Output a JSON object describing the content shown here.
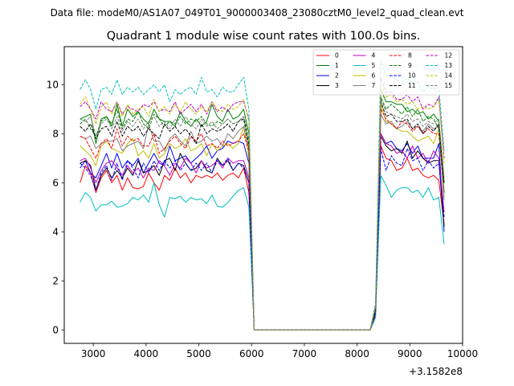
{
  "figure": {
    "suptitle": "Data file: modeM0/AS1A07_049T01_9000003408_23080cztM0_level2_quad_clean.evt"
  },
  "chart_data": {
    "type": "line",
    "title": "Quadrant 1 module wise count rates with 100.0s bins.",
    "xlabel": "",
    "ylabel": "",
    "offset_label": "+3.1582e8",
    "xlim": [
      2450,
      10000
    ],
    "ylim": [
      -0.55,
      11.55
    ],
    "xticks": [
      3000,
      4000,
      5000,
      6000,
      7000,
      8000,
      9000,
      10000
    ],
    "yticks": [
      0,
      2,
      4,
      6,
      8,
      10
    ],
    "grid": false,
    "legend_position": "top-right",
    "legend_columns": 4,
    "x": [
      2750,
      2850,
      2950,
      3050,
      3150,
      3250,
      3350,
      3450,
      3550,
      3650,
      3750,
      3850,
      3950,
      4050,
      4150,
      4250,
      4350,
      4450,
      4550,
      4650,
      4750,
      4850,
      4950,
      5050,
      5150,
      5250,
      5350,
      5450,
      5550,
      5650,
      5750,
      5850,
      5950,
      6050,
      8250,
      8350,
      8450,
      8550,
      8650,
      8750,
      8850,
      8950,
      9050,
      9150,
      9250,
      9350,
      9450,
      9550,
      9650
    ],
    "series": [
      {
        "name": "0",
        "color": "#ff0000",
        "dash": "solid",
        "values": [
          6.0,
          6.7,
          6.4,
          5.6,
          6.2,
          6.5,
          6.0,
          6.3,
          5.7,
          6.2,
          5.8,
          5.75,
          5.85,
          6.4,
          6.0,
          5.7,
          6.3,
          6.1,
          6.6,
          6.2,
          6.4,
          6.0,
          6.3,
          6.2,
          6.3,
          6.2,
          6.4,
          6.1,
          6.3,
          6.4,
          6.2,
          6.6,
          5.6,
          0,
          0,
          0.6,
          7.5,
          7.0,
          6.9,
          6.5,
          6.6,
          7.0,
          6.5,
          6.6,
          6.3,
          6.2,
          6.3,
          6.1,
          4.3
        ]
      },
      {
        "name": "1",
        "color": "#008000",
        "dash": "solid",
        "values": [
          8.6,
          8.7,
          8.8,
          7.6,
          8.6,
          8.7,
          8.3,
          9.2,
          8.3,
          9.0,
          8.7,
          8.9,
          8.6,
          8.4,
          9.0,
          8.6,
          8.5,
          8.5,
          8.3,
          8.9,
          8.5,
          8.3,
          8.6,
          8.3,
          8.5,
          9.2,
          8.7,
          8.5,
          9.0,
          8.6,
          8.7,
          9.0,
          8.0,
          0,
          0,
          0.9,
          9.8,
          9.3,
          9.3,
          9.2,
          9.2,
          8.9,
          9.0,
          8.8,
          8.9,
          8.6,
          8.8,
          8.5,
          6.0
        ]
      },
      {
        "name": "2",
        "color": "#0000ff",
        "dash": "solid",
        "values": [
          6.6,
          6.9,
          6.4,
          6.2,
          6.7,
          7.2,
          6.6,
          7.2,
          6.6,
          6.9,
          6.7,
          7.0,
          6.4,
          6.8,
          7.2,
          6.8,
          6.7,
          7.5,
          6.9,
          7.0,
          7.1,
          6.8,
          7.0,
          7.2,
          7.5,
          7.0,
          7.3,
          7.4,
          7.7,
          7.6,
          7.7,
          7.6,
          6.8,
          0,
          0,
          0.7,
          8.0,
          7.6,
          7.7,
          7.4,
          7.3,
          7.6,
          7.2,
          7.5,
          7.0,
          7.0,
          7.0,
          7.6,
          4.0
        ]
      },
      {
        "name": "3",
        "color": "#000000",
        "dash": "solid",
        "values": [
          6.8,
          6.9,
          6.7,
          5.7,
          6.3,
          6.6,
          6.2,
          6.5,
          6.2,
          6.6,
          6.3,
          6.9,
          6.4,
          6.5,
          6.7,
          6.3,
          6.9,
          7.0,
          6.5,
          7.2,
          6.8,
          6.5,
          6.6,
          6.9,
          6.5,
          6.4,
          7.0,
          6.7,
          6.9,
          6.5,
          6.8,
          6.7,
          6.0,
          0,
          0,
          0.7,
          7.9,
          7.5,
          7.3,
          7.4,
          7.2,
          7.7,
          7.0,
          7.3,
          7.0,
          6.8,
          6.9,
          6.9,
          4.2
        ]
      },
      {
        "name": "4",
        "color": "#bf00bf",
        "dash": "solid",
        "values": [
          6.9,
          7.0,
          6.6,
          6.0,
          6.5,
          6.8,
          6.9,
          6.6,
          6.3,
          6.7,
          6.4,
          6.6,
          6.2,
          6.6,
          6.5,
          6.9,
          6.7,
          6.3,
          6.8,
          6.6,
          7.0,
          6.8,
          6.4,
          6.9,
          6.6,
          6.7,
          6.9,
          6.6,
          7.0,
          6.8,
          6.9,
          6.9,
          6.2,
          0,
          0,
          0.8,
          8.0,
          7.6,
          7.5,
          7.2,
          7.3,
          7.0,
          7.5,
          7.0,
          7.2,
          6.8,
          7.3,
          7.0,
          4.8
        ]
      },
      {
        "name": "5",
        "color": "#00bfbf",
        "dash": "solid",
        "values": [
          5.2,
          5.6,
          5.4,
          4.85,
          5.1,
          5.1,
          5.25,
          5.0,
          5.05,
          5.15,
          5.4,
          5.3,
          5.5,
          5.2,
          6.0,
          5.1,
          4.6,
          5.4,
          5.35,
          5.45,
          5.2,
          5.4,
          5.3,
          5.35,
          5.15,
          5.5,
          5.05,
          5.0,
          5.2,
          5.45,
          5.7,
          5.8,
          5.0,
          0,
          0,
          0.5,
          6.3,
          5.9,
          5.4,
          5.7,
          5.8,
          5.8,
          5.6,
          5.7,
          5.4,
          5.8,
          5.3,
          5.4,
          3.5
        ]
      },
      {
        "name": "6",
        "color": "#bfbf00",
        "dash": "solid",
        "values": [
          7.5,
          7.3,
          7.1,
          6.7,
          7.5,
          7.7,
          7.4,
          7.3,
          7.2,
          7.6,
          7.8,
          7.1,
          7.3,
          7.0,
          7.6,
          7.0,
          7.2,
          7.6,
          7.4,
          7.5,
          7.8,
          7.3,
          7.4,
          7.6,
          7.1,
          7.6,
          7.3,
          7.5,
          7.6,
          7.4,
          7.6,
          8.3,
          7.0,
          0,
          0,
          0.8,
          9.2,
          8.5,
          8.4,
          8.2,
          8.1,
          8.1,
          7.9,
          7.7,
          7.8,
          7.9,
          7.6,
          8.2,
          5.4
        ]
      },
      {
        "name": "7",
        "color": "#808080",
        "dash": "solid",
        "values": [
          7.9,
          7.8,
          7.9,
          7.4,
          7.6,
          7.7,
          7.7,
          7.8,
          7.3,
          7.5,
          7.6,
          7.7,
          7.4,
          8.4,
          7.7,
          7.7,
          7.3,
          7.8,
          8.0,
          7.7,
          7.5,
          8.1,
          7.6,
          7.7,
          7.9,
          7.7,
          7.8,
          7.5,
          8.0,
          7.8,
          8.1,
          8.3,
          7.4,
          0,
          0,
          0.8,
          8.8,
          8.4,
          8.5,
          8.2,
          8.3,
          8.5,
          8.2,
          8.3,
          8.1,
          8.4,
          8.2,
          8.3,
          5.3
        ]
      },
      {
        "name": "8",
        "color": "#ff0000",
        "dash": "dashed",
        "values": [
          7.9,
          7.8,
          7.4,
          7.0,
          7.6,
          7.8,
          7.4,
          8.2,
          7.5,
          7.9,
          7.7,
          7.8,
          7.5,
          7.5,
          8.0,
          7.2,
          7.4,
          7.7,
          7.9,
          7.6,
          7.4,
          7.9,
          7.7,
          8.0,
          7.5,
          7.6,
          7.4,
          7.7,
          7.5,
          7.6,
          7.7,
          8.0,
          7.3,
          0,
          0,
          0.8,
          9.0,
          8.6,
          8.4,
          8.2,
          8.5,
          8.4,
          8.1,
          8.3,
          8.0,
          8.2,
          8.0,
          8.0,
          5.6
        ]
      },
      {
        "name": "9",
        "color": "#008000",
        "dash": "dashed",
        "values": [
          8.4,
          8.6,
          8.2,
          7.9,
          8.5,
          8.7,
          8.4,
          9.0,
          8.2,
          8.6,
          8.5,
          8.9,
          8.4,
          8.2,
          8.8,
          8.6,
          8.3,
          8.5,
          8.4,
          8.7,
          8.4,
          8.6,
          8.5,
          8.7,
          8.4,
          8.3,
          8.5,
          8.4,
          8.6,
          8.4,
          8.5,
          8.7,
          7.7,
          0,
          0,
          0.9,
          9.5,
          9.0,
          9.2,
          9.0,
          8.8,
          9.1,
          8.7,
          9.0,
          8.5,
          8.7,
          8.6,
          8.2,
          5.6
        ]
      },
      {
        "name": "10",
        "color": "#0000ff",
        "dash": "dashed",
        "values": [
          6.8,
          6.6,
          6.3,
          5.7,
          6.4,
          6.7,
          6.1,
          6.8,
          6.1,
          6.9,
          6.6,
          6.2,
          6.8,
          6.4,
          6.9,
          6.5,
          6.9,
          6.6,
          6.9,
          6.5,
          6.8,
          6.5,
          6.8,
          6.5,
          6.8,
          6.4,
          6.9,
          6.7,
          7.0,
          6.5,
          6.8,
          6.6,
          6.0,
          0,
          0,
          0.7,
          7.4,
          6.5,
          7.1,
          6.8,
          6.7,
          7.4,
          6.9,
          7.0,
          6.5,
          6.9,
          6.6,
          6.8,
          4.6
        ]
      },
      {
        "name": "11",
        "color": "#000000",
        "dash": "dashed",
        "values": [
          8.3,
          8.1,
          8.4,
          7.8,
          8.2,
          8.3,
          7.9,
          8.5,
          7.9,
          8.3,
          8.1,
          8.3,
          7.9,
          8.2,
          8.0,
          7.8,
          8.4,
          8.1,
          8.3,
          8.0,
          8.2,
          7.9,
          7.6,
          8.4,
          8.0,
          8.2,
          8.1,
          8.2,
          8.4,
          8.1,
          8.5,
          8.6,
          7.5,
          0,
          0,
          0.8,
          9.3,
          8.7,
          8.8,
          8.5,
          8.5,
          8.6,
          8.2,
          8.4,
          8.0,
          8.3,
          8.1,
          8.4,
          6.0
        ]
      },
      {
        "name": "12",
        "color": "#bf00bf",
        "dash": "dashed",
        "values": [
          9.1,
          9.3,
          9.0,
          8.6,
          9.3,
          9.0,
          8.9,
          9.3,
          8.8,
          9.1,
          9.0,
          8.9,
          9.2,
          9.1,
          9.3,
          8.9,
          9.0,
          8.9,
          9.3,
          8.8,
          9.0,
          9.2,
          8.9,
          9.2,
          8.8,
          9.3,
          8.9,
          9.1,
          8.9,
          9.2,
          9.3,
          9.3,
          8.6,
          0,
          0,
          1.0,
          10.3,
          9.7,
          9.7,
          9.4,
          9.4,
          9.6,
          9.3,
          9.5,
          9.0,
          9.2,
          9.1,
          9.5,
          7.0
        ]
      },
      {
        "name": "13",
        "color": "#00bfbf",
        "dash": "dashed",
        "values": [
          9.8,
          10.2,
          9.8,
          9.0,
          9.8,
          9.9,
          9.6,
          10.2,
          9.6,
          9.9,
          9.7,
          9.9,
          9.6,
          9.8,
          10.0,
          9.7,
          10.0,
          9.3,
          9.8,
          9.6,
          9.8,
          9.9,
          9.6,
          10.3,
          9.7,
          9.8,
          9.5,
          9.9,
          9.7,
          9.7,
          10.0,
          10.3,
          9.0,
          0,
          0,
          1.1,
          11.0,
          10.4,
          10.3,
          10.2,
          10.1,
          10.3,
          10.0,
          10.1,
          9.7,
          9.9,
          9.8,
          9.9,
          7.3
        ]
      },
      {
        "name": "14",
        "color": "#bfbf00",
        "dash": "dashed",
        "values": [
          9.2,
          9.5,
          9.0,
          8.4,
          9.1,
          9.3,
          8.8,
          9.3,
          8.7,
          9.2,
          8.8,
          9.0,
          9.1,
          8.7,
          9.4,
          8.9,
          9.1,
          8.8,
          9.2,
          8.9,
          9.3,
          9.0,
          8.8,
          9.1,
          8.9,
          9.3,
          9.0,
          8.9,
          9.2,
          9.0,
          9.1,
          9.4,
          8.5,
          0,
          0,
          1.0,
          10.1,
          9.5,
          9.6,
          9.3,
          9.4,
          9.2,
          9.3,
          9.0,
          9.1,
          9.0,
          9.1,
          9.4,
          6.8
        ]
      },
      {
        "name": "15",
        "color": "#808080",
        "dash": "dashed",
        "values": [
          8.6,
          8.5,
          8.7,
          7.9,
          8.4,
          8.6,
          8.2,
          8.7,
          8.1,
          8.5,
          8.3,
          8.6,
          8.2,
          8.5,
          8.7,
          8.3,
          8.5,
          8.2,
          8.6,
          8.3,
          8.7,
          8.4,
          8.2,
          8.6,
          8.3,
          8.5,
          8.2,
          8.4,
          8.6,
          8.4,
          8.5,
          8.7,
          8.0,
          0,
          0,
          0.9,
          9.4,
          8.9,
          8.8,
          8.7,
          8.6,
          8.8,
          8.5,
          8.6,
          8.3,
          8.5,
          8.4,
          8.6,
          6.2
        ]
      }
    ]
  }
}
